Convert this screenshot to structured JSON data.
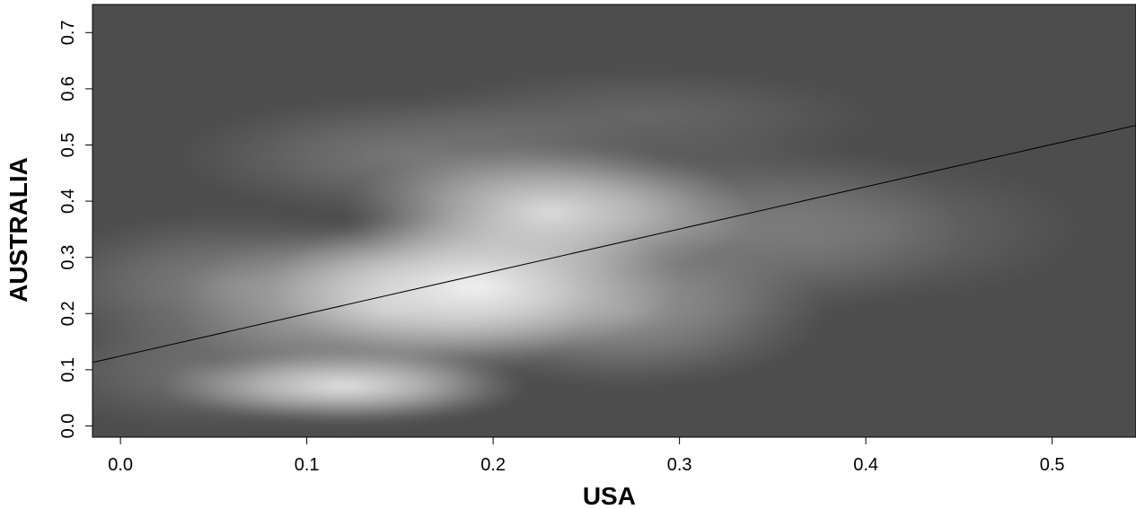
{
  "chart_data": {
    "type": "heatmap",
    "title": "",
    "xlabel": "USA",
    "ylabel": "AUSTRALIA",
    "xlim": [
      -0.015,
      0.545
    ],
    "ylim": [
      -0.02,
      0.75
    ],
    "xticks": [
      0.0,
      0.1,
      0.2,
      0.3,
      0.4,
      0.5
    ],
    "yticks": [
      0.0,
      0.1,
      0.2,
      0.3,
      0.4,
      0.5,
      0.6,
      0.7
    ],
    "xtick_labels": [
      "0.0",
      "0.1",
      "0.2",
      "0.3",
      "0.4",
      "0.5"
    ],
    "ytick_labels": [
      "0.0",
      "0.1",
      "0.2",
      "0.3",
      "0.4",
      "0.5",
      "0.6",
      "0.7"
    ],
    "grid": false,
    "background_color": "#4d4d4d",
    "density_color": "#ffffff",
    "density_clusters": [
      {
        "x": 0.12,
        "y": 0.07,
        "sx": 0.045,
        "sy": 0.03,
        "weight": 0.85
      },
      {
        "x": 0.19,
        "y": 0.25,
        "sx": 0.05,
        "sy": 0.06,
        "weight": 0.9
      },
      {
        "x": 0.23,
        "y": 0.38,
        "sx": 0.05,
        "sy": 0.055,
        "weight": 0.8
      },
      {
        "x": 0.14,
        "y": 0.21,
        "sx": 0.05,
        "sy": 0.07,
        "weight": 0.55
      },
      {
        "x": 0.06,
        "y": 0.25,
        "sx": 0.05,
        "sy": 0.06,
        "weight": 0.3
      },
      {
        "x": 0.27,
        "y": 0.2,
        "sx": 0.05,
        "sy": 0.06,
        "weight": 0.4
      },
      {
        "x": 0.32,
        "y": 0.35,
        "sx": 0.06,
        "sy": 0.08,
        "weight": 0.25
      },
      {
        "x": 0.16,
        "y": 0.48,
        "sx": 0.06,
        "sy": 0.05,
        "weight": 0.25
      },
      {
        "x": 0.28,
        "y": 0.55,
        "sx": 0.06,
        "sy": 0.04,
        "weight": 0.15
      },
      {
        "x": 0.41,
        "y": 0.35,
        "sx": 0.05,
        "sy": 0.06,
        "weight": 0.15
      },
      {
        "x": 0.04,
        "y": 0.1,
        "sx": 0.04,
        "sy": 0.05,
        "weight": 0.2
      }
    ],
    "regression_line": {
      "x": [
        -0.015,
        0.545
      ],
      "y": [
        0.113,
        0.535
      ],
      "color": "#000000"
    }
  }
}
